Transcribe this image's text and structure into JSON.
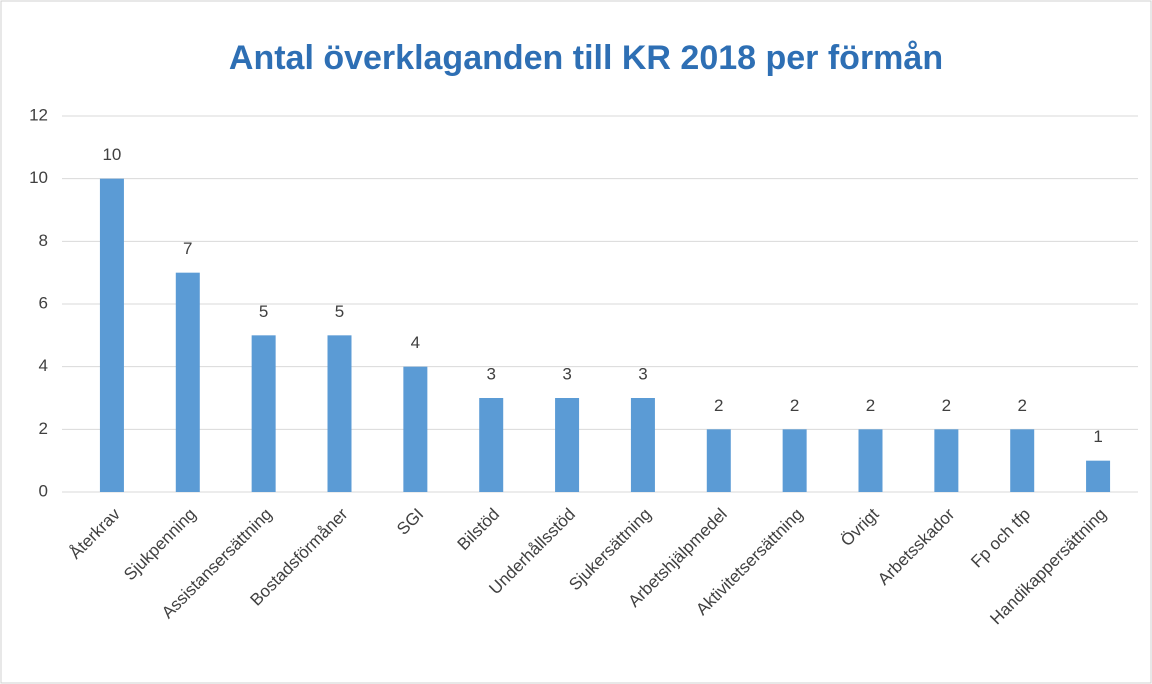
{
  "chart_data": {
    "type": "bar",
    "title": "Antal överklaganden till KR 2018 per förmån",
    "categories": [
      "Återkrav",
      "Sjukpenning",
      "Assistansersättning",
      "Bostadsförmåner",
      "SGI",
      "Bilstöd",
      "Underhållsstöd",
      "Sjukersättning",
      "Arbetshjälpmedel",
      "Aktivitetsersättning",
      "Övrigt",
      "Arbetsskador",
      "Fp och tfp",
      "Handikappersättning"
    ],
    "values": [
      10,
      7,
      5,
      5,
      4,
      3,
      3,
      3,
      2,
      2,
      2,
      2,
      2,
      1
    ],
    "color": "#5b9bd5",
    "ylim": [
      0,
      12
    ],
    "yticks": [
      0,
      2,
      4,
      6,
      8,
      10,
      12
    ],
    "grid": true
  }
}
